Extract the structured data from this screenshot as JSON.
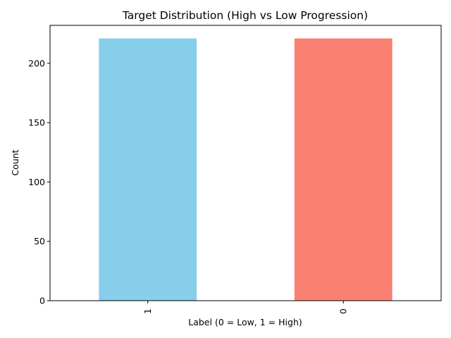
{
  "chart_data": {
    "type": "bar",
    "title": "Target Distribution (High vs Low Progression)",
    "xlabel": "Label (0 = Low, 1 = High)",
    "ylabel": "Count",
    "categories": [
      "1",
      "0"
    ],
    "values": [
      221,
      221
    ],
    "colors": [
      "#87ceeb",
      "#fa8072"
    ],
    "ylim": [
      0,
      232
    ],
    "yticks": [
      0,
      50,
      100,
      150,
      200
    ],
    "xtick_rotation": 90,
    "grid": false,
    "legend": "none"
  }
}
